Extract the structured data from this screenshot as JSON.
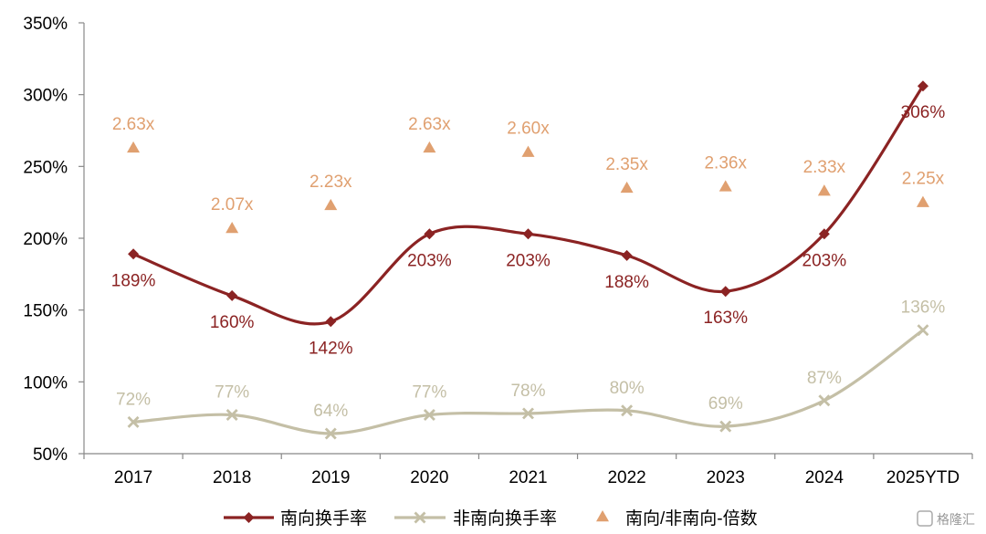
{
  "chart_data": {
    "type": "line",
    "categories": [
      "2017",
      "2018",
      "2019",
      "2020",
      "2021",
      "2022",
      "2023",
      "2024",
      "2025YTD"
    ],
    "ylim": [
      50,
      350
    ],
    "yticks": [
      "50%",
      "100%",
      "150%",
      "200%",
      "250%",
      "300%",
      "350%"
    ],
    "ytick_values": [
      50,
      100,
      150,
      200,
      250,
      300,
      350
    ],
    "grid": false,
    "legend_position": "bottom",
    "series": [
      {
        "name": "南向换手率",
        "kind": "line",
        "marker": "diamond",
        "color": "#8B2323",
        "values": [
          189,
          160,
          142,
          203,
          203,
          188,
          163,
          203,
          306
        ],
        "labels": [
          "189%",
          "160%",
          "142%",
          "203%",
          "203%",
          "188%",
          "163%",
          "203%",
          "306%"
        ]
      },
      {
        "name": "非南向换手率",
        "kind": "line",
        "marker": "x",
        "color": "#C4BFA6",
        "values": [
          72,
          77,
          64,
          77,
          78,
          80,
          69,
          87,
          136
        ],
        "labels": [
          "72%",
          "77%",
          "64%",
          "77%",
          "78%",
          "80%",
          "69%",
          "87%",
          "136%"
        ]
      },
      {
        "name": "南向/非南向-倍数",
        "kind": "scatter",
        "marker": "triangle",
        "color": "#E0A070",
        "values": [
          2.63,
          2.07,
          2.23,
          2.63,
          2.6,
          2.35,
          2.36,
          2.33,
          2.25
        ],
        "labels": [
          "2.63x",
          "2.07x",
          "2.23x",
          "2.63x",
          "2.60x",
          "2.35x",
          "2.36x",
          "2.33x",
          "2.25x"
        ]
      }
    ]
  },
  "watermark": "格隆汇"
}
